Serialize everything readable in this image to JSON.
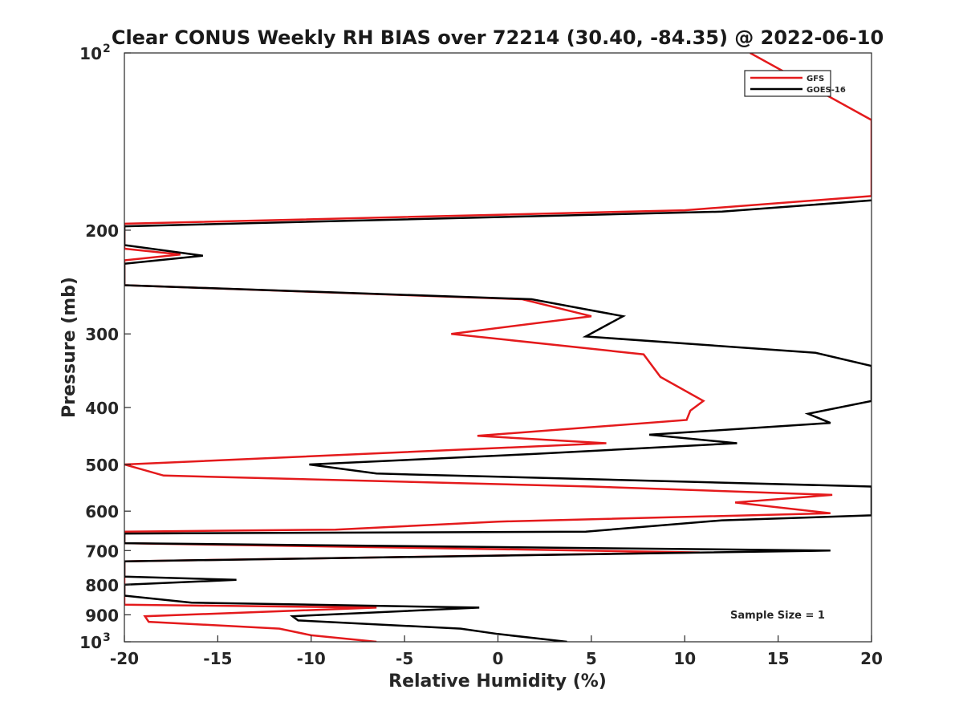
{
  "chart_data": {
    "type": "line",
    "title": "Clear CONUS Weekly RH BIAS over 72214 (30.40, -84.35) @ 2022-06-10",
    "xlabel": "Relative Humidity (%)",
    "ylabel": "Pressure (mb)",
    "xlim": [
      -20,
      20
    ],
    "ylim": [
      100,
      1000
    ],
    "yscale": "log",
    "y_reversed": true,
    "grid": false,
    "legend_position": "top-right",
    "x_ticks": [
      -20,
      -15,
      -10,
      -5,
      0,
      5,
      10,
      15,
      20
    ],
    "x_tick_labels": [
      "-20",
      "-15",
      "-10",
      "-5",
      "0",
      "5",
      "10",
      "15",
      "20"
    ],
    "y_ticks": [
      100,
      200,
      300,
      400,
      500,
      600,
      700,
      800,
      900,
      1000
    ],
    "y_tick_labels": [
      {
        "base": "10",
        "exp": "2"
      },
      {
        "base": "200",
        "exp": ""
      },
      {
        "base": "300",
        "exp": ""
      },
      {
        "base": "400",
        "exp": ""
      },
      {
        "base": "500",
        "exp": ""
      },
      {
        "base": "600",
        "exp": ""
      },
      {
        "base": "700",
        "exp": ""
      },
      {
        "base": "800",
        "exp": ""
      },
      {
        "base": "900",
        "exp": ""
      },
      {
        "base": "10",
        "exp": "3"
      }
    ],
    "annotation": "Sample Size = 1",
    "series": [
      {
        "name": "GFS",
        "color": "#e41a1c",
        "points": [
          [
            -6.5,
            1000
          ],
          [
            -10,
            975
          ],
          [
            -11.7,
            950
          ],
          [
            -18.7,
            925
          ],
          [
            -18.9,
            905
          ],
          [
            -6.5,
            875
          ],
          [
            -20,
            865
          ],
          [
            -20,
            730
          ],
          [
            10.8,
            705
          ],
          [
            -20,
            680
          ],
          [
            -20,
            650
          ],
          [
            -8.7,
            645
          ],
          [
            0,
            625
          ],
          [
            17.8,
            605
          ],
          [
            12.7,
            580
          ],
          [
            17.9,
            563
          ],
          [
            5,
            545
          ],
          [
            -17.9,
            522
          ],
          [
            -20,
            500
          ],
          [
            5.8,
            460
          ],
          [
            -1.1,
            447
          ],
          [
            10.1,
            420
          ],
          [
            10.3,
            405
          ],
          [
            11,
            390
          ],
          [
            8.7,
            355
          ],
          [
            7.8,
            325
          ],
          [
            -2.5,
            300
          ],
          [
            5,
            280
          ],
          [
            1.3,
            262
          ],
          [
            -20,
            248
          ],
          [
            -20,
            225
          ],
          [
            -17,
            220
          ],
          [
            -20,
            215
          ],
          [
            -20,
            195
          ],
          [
            10,
            185
          ],
          [
            20,
            175
          ],
          [
            20,
            130
          ],
          [
            13.5,
            100
          ]
        ]
      },
      {
        "name": "GOES-16",
        "color": "#000000",
        "points": [
          [
            3.7,
            1000
          ],
          [
            0,
            970
          ],
          [
            -2,
            950
          ],
          [
            -10.7,
            920
          ],
          [
            -11,
            905
          ],
          [
            -1,
            875
          ],
          [
            -16.4,
            858
          ],
          [
            -20,
            835
          ],
          [
            -20,
            800
          ],
          [
            -14,
            785
          ],
          [
            -20,
            775
          ],
          [
            -20,
            730
          ],
          [
            17.8,
            700
          ],
          [
            -20,
            680
          ],
          [
            -20,
            655
          ],
          [
            4.7,
            650
          ],
          [
            12,
            622
          ],
          [
            20,
            610
          ],
          [
            20,
            545
          ],
          [
            -6.5,
            518
          ],
          [
            -10.1,
            500
          ],
          [
            1.8,
            480
          ],
          [
            12.8,
            460
          ],
          [
            8.1,
            445
          ],
          [
            17.8,
            425
          ],
          [
            16.6,
            410
          ],
          [
            20,
            390
          ],
          [
            20,
            340
          ],
          [
            17,
            323
          ],
          [
            4.7,
            303
          ],
          [
            6.7,
            280
          ],
          [
            1.8,
            262
          ],
          [
            -20,
            248
          ],
          [
            -20,
            228
          ],
          [
            -15.8,
            221
          ],
          [
            -20,
            212
          ],
          [
            -20,
            197
          ],
          [
            12,
            186
          ],
          [
            20,
            178
          ]
        ]
      }
    ]
  }
}
